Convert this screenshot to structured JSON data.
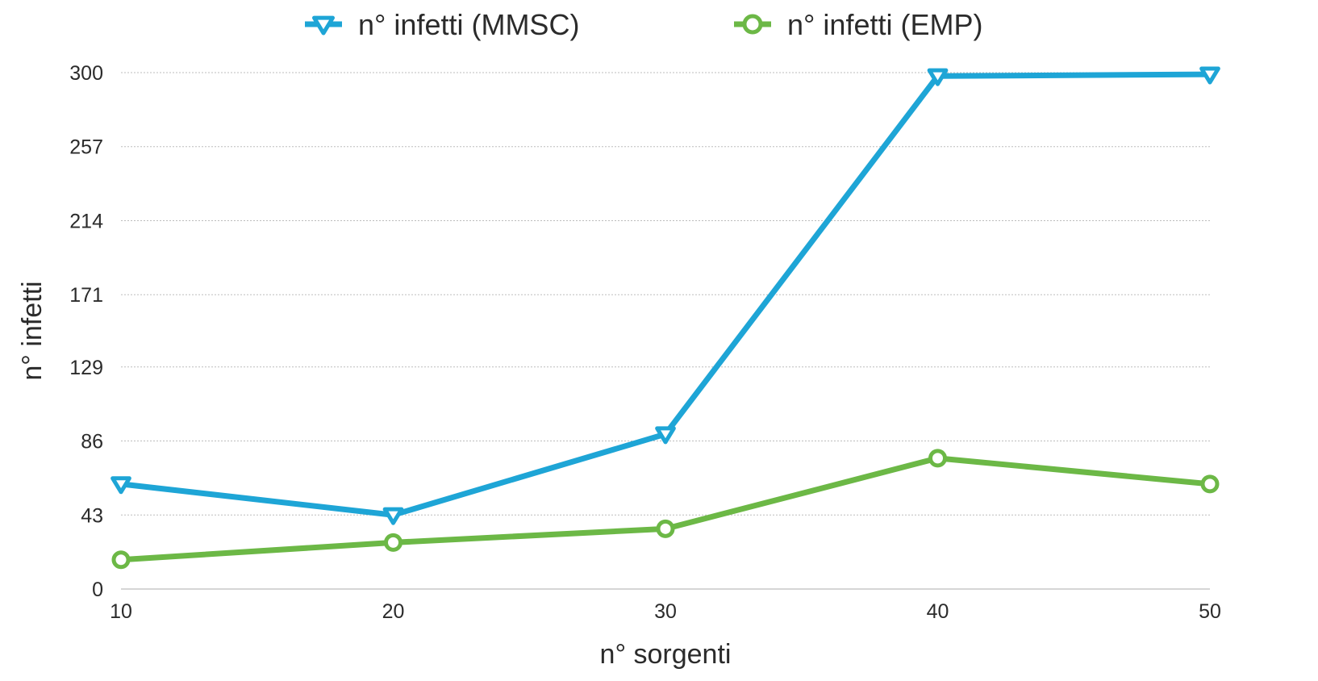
{
  "chart_data": {
    "type": "line",
    "xlabel": "n° sorgenti",
    "ylabel": "n° infetti",
    "x": [
      10,
      20,
      30,
      40,
      50
    ],
    "ylim": [
      0,
      300
    ],
    "y_ticks": [
      "0",
      "43",
      "86",
      "129",
      "171",
      "214",
      "257",
      "300"
    ],
    "grid": true,
    "legend_position": "top",
    "series": [
      {
        "name": "n° infetti (MMSC)",
        "values": [
          61,
          43,
          90,
          298,
          299
        ],
        "color": "#1ea5d6",
        "marker": "triangle-down"
      },
      {
        "name": "n° infetti (EMP)",
        "values": [
          17,
          27,
          35,
          76,
          61
        ],
        "color": "#6cb846",
        "marker": "circle"
      }
    ]
  }
}
